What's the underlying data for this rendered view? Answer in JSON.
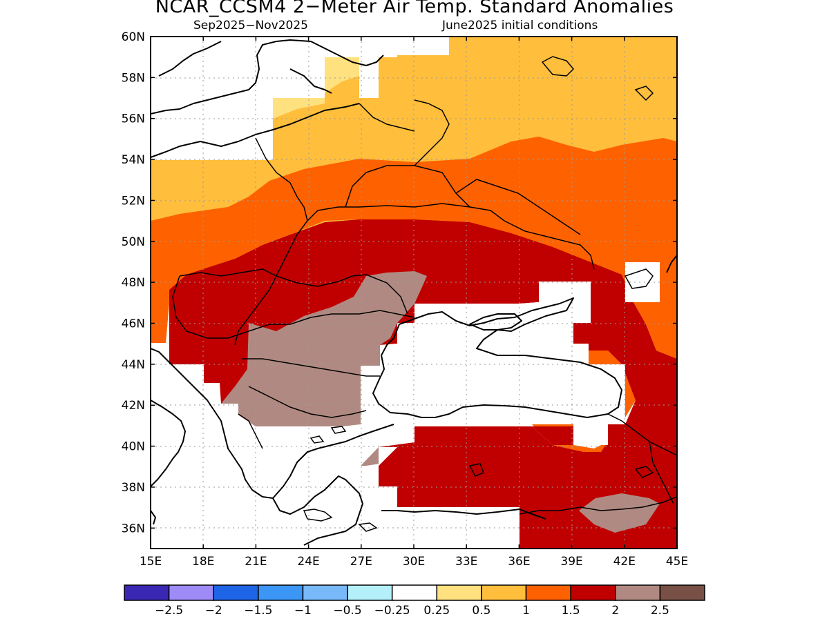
{
  "title": "NCAR_CCSM4 2−Meter Air Temp. Standard Anomalies",
  "subtitle_left": "Sep2025−Nov2025",
  "subtitle_right": "June2025 initial conditions",
  "colors": {
    "white": "#ffffff",
    "light_yellow": "#ffe17f",
    "yellow_orange": "#ffbe3c",
    "orange": "#fe6200",
    "dark_red": "#c00000",
    "brown": "#b08a82",
    "cyan": "#b0eeff"
  },
  "legend": {
    "colors": [
      "#3a28b4",
      "#9e8bf5",
      "#1e64e6",
      "#3c96f5",
      "#78b9fa",
      "#b4f0fa",
      "#ffffff",
      "#ffe17f",
      "#ffbe3c",
      "#fe6200",
      "#c00000",
      "#b08a82",
      "#785046"
    ],
    "labels": [
      "−2.5",
      "−2",
      "−1.5",
      "−1",
      "−0.5",
      "−0.25",
      "0.25",
      "0.5",
      "1",
      "1.5",
      "2",
      "2.5"
    ]
  },
  "map": {
    "lon_range": [
      15,
      45
    ],
    "lat_range": [
      35,
      60
    ],
    "x_ticks": [
      "15E",
      "18E",
      "21E",
      "24E",
      "27E",
      "30E",
      "33E",
      "36E",
      "39E",
      "42E",
      "45E"
    ],
    "y_ticks": [
      "60N",
      "58N",
      "56N",
      "54N",
      "52N",
      "50N",
      "48N",
      "46N",
      "44N",
      "42N",
      "40N",
      "38N",
      "36N"
    ],
    "grid": true
  }
}
